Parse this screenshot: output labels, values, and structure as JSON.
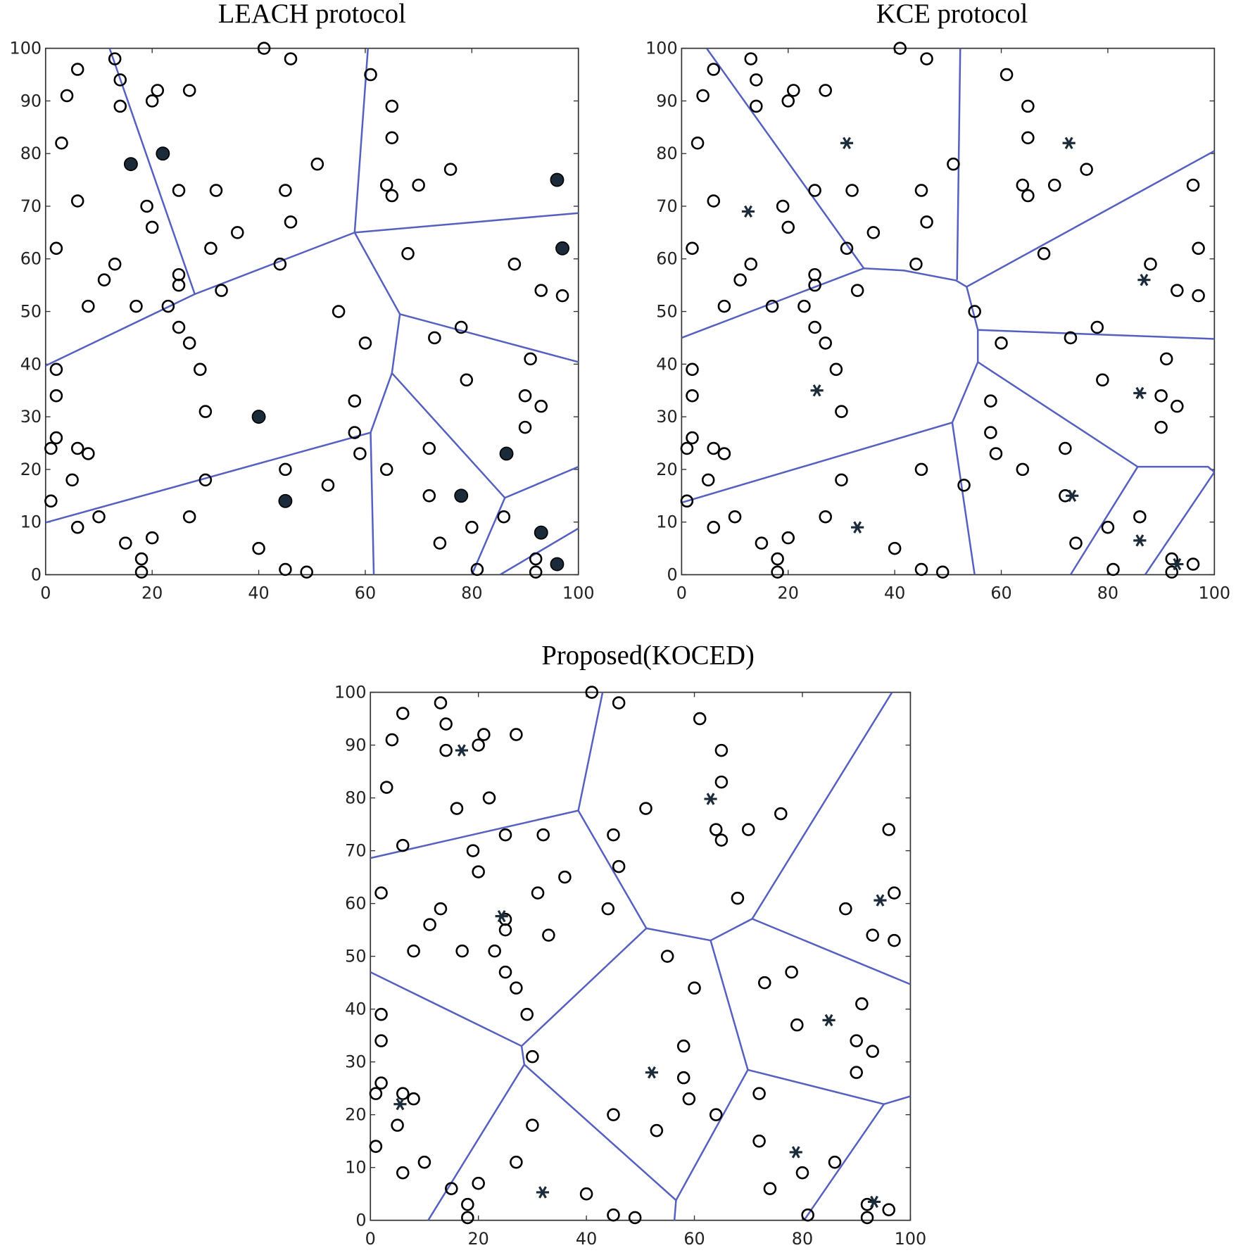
{
  "chart_data": [
    {
      "type": "scatter",
      "title": "LEACH protocol",
      "xlim": [
        0,
        100
      ],
      "ylim": [
        0,
        100
      ],
      "xticks": [
        0,
        20,
        40,
        60,
        80,
        100
      ],
      "yticks": [
        0,
        10,
        20,
        30,
        40,
        50,
        60,
        70,
        80,
        90,
        100
      ],
      "series": [
        {
          "marker": "circle",
          "color": "#000000",
          "x": [
            13,
            41,
            46,
            6,
            4,
            14,
            14,
            21,
            20,
            27,
            61,
            65,
            3,
            65,
            51,
            76,
            25,
            32,
            45,
            64,
            65,
            70,
            6,
            19,
            20,
            46,
            36,
            2,
            31,
            68,
            88,
            13,
            25,
            44,
            25,
            11,
            33,
            93,
            97,
            8,
            17,
            23,
            55,
            25,
            78,
            73,
            27,
            60,
            91,
            2,
            29,
            79,
            2,
            58,
            90,
            93,
            30,
            90,
            58,
            2,
            1,
            6,
            8,
            59,
            72,
            45,
            64,
            5,
            30,
            53,
            72,
            1,
            27,
            10,
            86,
            6,
            80,
            15,
            20,
            74,
            40,
            18,
            92,
            45,
            18,
            49,
            81,
            92
          ],
          "y": [
            98,
            100,
            98,
            96,
            91,
            94,
            89,
            92,
            90,
            92,
            95,
            89,
            82,
            83,
            78,
            77,
            73,
            73,
            73,
            74,
            72,
            74,
            71,
            70,
            66,
            67,
            65,
            62,
            62,
            61,
            59,
            59,
            57,
            59,
            55,
            56,
            54,
            54,
            53,
            51,
            51,
            51,
            50,
            47,
            47,
            45,
            44,
            44,
            41,
            39,
            39,
            37,
            34,
            33,
            34,
            32,
            31,
            28,
            27,
            26,
            24,
            24,
            23,
            23,
            24,
            20,
            20,
            18,
            18,
            17,
            15,
            14,
            11,
            11,
            11,
            9,
            9,
            6,
            7,
            6,
            5,
            3,
            3,
            1,
            0.5,
            0.5,
            1,
            0.5
          ]
        },
        {
          "marker": "filled-circle",
          "color": "#1c2b3a",
          "x": [
            16,
            22,
            96,
            97,
            40,
            86.5,
            45,
            78,
            93,
            96
          ],
          "y": [
            78,
            80,
            75,
            62,
            30,
            23,
            14,
            15,
            8,
            2
          ]
        }
      ],
      "lines": [
        {
          "color": "#5560c0",
          "x": [
            12,
            28
          ],
          "y": [
            100,
            53.3
          ]
        },
        {
          "color": "#5560c0",
          "x": [
            0,
            28,
            58
          ],
          "y": [
            39.7,
            53.3,
            65
          ]
        },
        {
          "color": "#5560c0",
          "x": [
            58,
            60.5
          ],
          "y": [
            65,
            100
          ]
        },
        {
          "color": "#5560c0",
          "x": [
            58,
            100
          ],
          "y": [
            65,
            68.7
          ]
        },
        {
          "color": "#5560c0",
          "x": [
            58,
            66.5,
            100
          ],
          "y": [
            65,
            49.5,
            40.4
          ]
        },
        {
          "color": "#5560c0",
          "x": [
            66.5,
            65,
            61,
            0
          ],
          "y": [
            49.5,
            38.3,
            27,
            9.9
          ]
        },
        {
          "color": "#5560c0",
          "x": [
            61,
            61.6
          ],
          "y": [
            27,
            0
          ]
        },
        {
          "color": "#5560c0",
          "x": [
            65,
            86.2,
            100
          ],
          "y": [
            38.3,
            14.6,
            20.5
          ]
        },
        {
          "color": "#5560c0",
          "x": [
            86.2,
            80
          ],
          "y": [
            14.6,
            0
          ]
        },
        {
          "color": "#5560c0",
          "x": [
            85.3,
            100
          ],
          "y": [
            0,
            8.8
          ]
        }
      ]
    },
    {
      "type": "scatter",
      "title": "KCE protocol",
      "xlim": [
        0,
        100
      ],
      "ylim": [
        0,
        100
      ],
      "xticks": [
        0,
        20,
        40,
        60,
        80,
        100
      ],
      "yticks": [
        0,
        10,
        20,
        30,
        40,
        50,
        60,
        70,
        80,
        90,
        100
      ],
      "series": [
        {
          "marker": "circle",
          "color": "#000000",
          "x": [
            13,
            41,
            46,
            6,
            4,
            14,
            14,
            21,
            20,
            27,
            61,
            65,
            3,
            65,
            51,
            76,
            25,
            32,
            45,
            64,
            65,
            70,
            6,
            19,
            20,
            46,
            36,
            2,
            31,
            68,
            88,
            13,
            25,
            44,
            25,
            11,
            33,
            93,
            97,
            8,
            17,
            23,
            55,
            25,
            78,
            73,
            27,
            60,
            91,
            2,
            29,
            79,
            2,
            58,
            90,
            93,
            30,
            90,
            58,
            2,
            1,
            6,
            8,
            59,
            72,
            45,
            64,
            5,
            30,
            53,
            72,
            1,
            27,
            10,
            86,
            6,
            80,
            15,
            20,
            74,
            40,
            18,
            92,
            45,
            18,
            49,
            81,
            92,
            96,
            97,
            96
          ],
          "y": [
            98,
            100,
            98,
            96,
            91,
            94,
            89,
            92,
            90,
            92,
            95,
            89,
            82,
            83,
            78,
            77,
            73,
            73,
            73,
            74,
            72,
            74,
            71,
            70,
            66,
            67,
            65,
            62,
            62,
            61,
            59,
            59,
            57,
            59,
            55,
            56,
            54,
            54,
            53,
            51,
            51,
            51,
            50,
            47,
            47,
            45,
            44,
            44,
            41,
            39,
            39,
            37,
            34,
            33,
            34,
            32,
            31,
            28,
            27,
            26,
            24,
            24,
            23,
            23,
            24,
            20,
            20,
            18,
            18,
            17,
            15,
            14,
            11,
            11,
            11,
            9,
            9,
            6,
            7,
            6,
            5,
            3,
            3,
            1,
            0.5,
            0.5,
            1,
            0.5,
            74,
            62,
            2
          ]
        },
        {
          "marker": "star",
          "color": "#1c2b3a",
          "x": [
            31,
            72.7,
            12.5,
            86.8,
            25.4,
            86,
            73.3,
            33,
            86,
            93
          ],
          "y": [
            82,
            82,
            69,
            56,
            35,
            34.5,
            15,
            9,
            6.5,
            2
          ]
        }
      ],
      "lines": [
        {
          "color": "#5560c0",
          "x": [
            4.7,
            34.2
          ],
          "y": [
            100,
            58.2
          ]
        },
        {
          "color": "#5560c0",
          "x": [
            0,
            34.2,
            41.7,
            51.5,
            53.5
          ],
          "y": [
            45,
            58.2,
            57.8,
            55.9,
            54.7
          ]
        },
        {
          "color": "#5560c0",
          "x": [
            52.3,
            51.7
          ],
          "y": [
            100,
            56
          ]
        },
        {
          "color": "#5560c0",
          "x": [
            53.5,
            100
          ],
          "y": [
            54.7,
            80.5
          ]
        },
        {
          "color": "#5560c0",
          "x": [
            53.5,
            55.6,
            55.6
          ],
          "y": [
            54.7,
            46.5,
            40.4
          ]
        },
        {
          "color": "#5560c0",
          "x": [
            55.6,
            100
          ],
          "y": [
            46.5,
            44.8
          ]
        },
        {
          "color": "#5560c0",
          "x": [
            55.6,
            50.8,
            0
          ],
          "y": [
            40.4,
            28.9,
            13.7
          ]
        },
        {
          "color": "#5560c0",
          "x": [
            50.8,
            55
          ],
          "y": [
            28.9,
            0
          ]
        },
        {
          "color": "#5560c0",
          "x": [
            55.6,
            85.6,
            98.8,
            100
          ],
          "y": [
            40.4,
            20.5,
            20.5,
            19.5
          ]
        },
        {
          "color": "#5560c0",
          "x": [
            85.6,
            73
          ],
          "y": [
            20.5,
            0
          ]
        },
        {
          "color": "#5560c0",
          "x": [
            100,
            87
          ],
          "y": [
            19.5,
            0
          ]
        }
      ]
    },
    {
      "type": "scatter",
      "title": "Proposed(KOCED)",
      "xlim": [
        0,
        100
      ],
      "ylim": [
        0,
        100
      ],
      "xticks": [
        0,
        20,
        40,
        60,
        80,
        100
      ],
      "yticks": [
        0,
        10,
        20,
        30,
        40,
        50,
        60,
        70,
        80,
        90,
        100
      ],
      "series": [
        {
          "marker": "circle",
          "color": "#000000",
          "x": [
            13,
            41,
            46,
            6,
            4,
            14,
            14,
            21,
            20,
            27,
            61,
            65,
            3,
            65,
            51,
            76,
            25,
            32,
            45,
            64,
            65,
            70,
            6,
            19,
            20,
            46,
            36,
            2,
            31,
            68,
            88,
            13,
            25,
            44,
            25,
            11,
            33,
            93,
            97,
            8,
            17,
            23,
            55,
            25,
            78,
            73,
            27,
            60,
            91,
            2,
            29,
            79,
            2,
            58,
            90,
            93,
            30,
            90,
            58,
            2,
            1,
            6,
            8,
            59,
            72,
            45,
            64,
            5,
            30,
            53,
            72,
            1,
            27,
            10,
            86,
            6,
            80,
            15,
            20,
            74,
            40,
            18,
            92,
            45,
            18,
            49,
            81,
            92,
            96,
            97,
            96,
            16,
            22
          ],
          "y": [
            98,
            100,
            98,
            96,
            91,
            94,
            89,
            92,
            90,
            92,
            95,
            89,
            82,
            83,
            78,
            77,
            73,
            73,
            73,
            74,
            72,
            74,
            71,
            70,
            66,
            67,
            65,
            62,
            62,
            61,
            59,
            59,
            57,
            59,
            55,
            56,
            54,
            54,
            53,
            51,
            51,
            51,
            50,
            47,
            47,
            45,
            44,
            44,
            41,
            39,
            39,
            37,
            34,
            33,
            34,
            32,
            31,
            28,
            27,
            26,
            24,
            24,
            23,
            23,
            24,
            20,
            20,
            18,
            18,
            17,
            15,
            14,
            11,
            11,
            11,
            9,
            9,
            6,
            7,
            6,
            5,
            3,
            3,
            1,
            0.5,
            0.5,
            1,
            0.5,
            74,
            62,
            2,
            78,
            80
          ]
        },
        {
          "marker": "star",
          "color": "#1c2b3a",
          "x": [
            16.9,
            63,
            24.3,
            94.4,
            84.9,
            52.1,
            5.5,
            78.8,
            31.9,
            93.3
          ],
          "y": [
            89,
            79.8,
            57.6,
            60.6,
            37.9,
            28,
            22,
            12.9,
            5.3,
            3.5
          ]
        }
      ],
      "lines": [
        {
          "color": "#5560c0",
          "x": [
            0,
            38.5,
            43
          ],
          "y": [
            68.6,
            77.6,
            100
          ]
        },
        {
          "color": "#5560c0",
          "x": [
            38.5,
            51.1,
            63,
            70.7,
            96.6
          ],
          "y": [
            77.6,
            55.3,
            53,
            57.1,
            100
          ]
        },
        {
          "color": "#5560c0",
          "x": [
            70.7,
            100
          ],
          "y": [
            57.1,
            44.7
          ]
        },
        {
          "color": "#5560c0",
          "x": [
            63,
            69.9,
            95.1,
            100
          ],
          "y": [
            53,
            28.5,
            22,
            23.5
          ]
        },
        {
          "color": "#5560c0",
          "x": [
            95.1,
            80.3
          ],
          "y": [
            22,
            0
          ]
        },
        {
          "color": "#5560c0",
          "x": [
            0,
            28,
            28.5
          ],
          "y": [
            47,
            33,
            29.5
          ]
        },
        {
          "color": "#5560c0",
          "x": [
            51.1,
            28
          ],
          "y": [
            55.3,
            33
          ]
        },
        {
          "color": "#5560c0",
          "x": [
            28.5,
            10.7
          ],
          "y": [
            29.5,
            0
          ]
        },
        {
          "color": "#5560c0",
          "x": [
            28.5,
            56.6,
            56.3
          ],
          "y": [
            29.5,
            3.8,
            0
          ]
        },
        {
          "color": "#5560c0",
          "x": [
            56.6,
            69.9
          ],
          "y": [
            3.8,
            28.5
          ]
        }
      ]
    }
  ]
}
